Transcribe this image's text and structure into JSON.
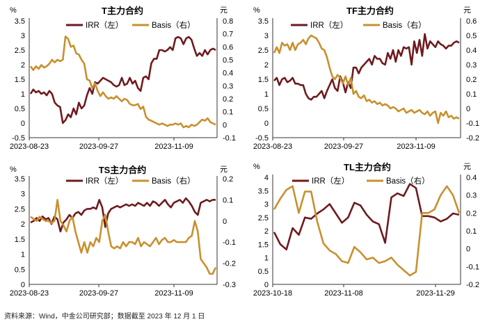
{
  "source_note": "资料来源：Wind，中金公司研究部；数据截至 2023 年 12 月 1 日",
  "colors": {
    "irr": "#6e1a1e",
    "basis": "#c8902e",
    "axis": "#333333",
    "text": "#000000"
  },
  "chart_data": [
    {
      "type": "line",
      "title": "T主力合约",
      "left_unit": "%",
      "right_unit": "元",
      "left_ticks": [
        "3.5",
        "3",
        "2.5",
        "2",
        "1.5",
        "1",
        "0.5",
        "0",
        "-0.5"
      ],
      "right_ticks": [
        "0.8",
        "0.7",
        "0.6",
        "0.5",
        "0.4",
        "0.3",
        "0.2",
        "0.1",
        "0",
        "-0.1"
      ],
      "x_ticks": [
        "2023-08-23",
        "2023-09-27",
        "2023-11-09"
      ],
      "ylim_left": [
        -0.5,
        3.5
      ],
      "ylim_right": [
        -0.1,
        0.8
      ],
      "series": [
        {
          "name": "IRR（左）",
          "axis": "left",
          "values": [
            1.0,
            1.15,
            1.05,
            1.1,
            1.0,
            1.05,
            0.95,
            1.1,
            1.0,
            0.7,
            0.6,
            0.55,
            0.0,
            0.1,
            0.3,
            0.2,
            0.5,
            0.3,
            0.7,
            0.5,
            0.6,
            0.95,
            1.2,
            1.0,
            1.4,
            1.35,
            1.45,
            1.55,
            1.5,
            1.45,
            1.4,
            1.3,
            1.25,
            1.3,
            1.55,
            1.3,
            1.35,
            1.55,
            1.35,
            1.45,
            1.2,
            1.1,
            1.55,
            1.6,
            1.5,
            2.05,
            2.2,
            2.2,
            2.5,
            2.5,
            2.45,
            2.5,
            2.6,
            2.5,
            2.9,
            2.95,
            2.9,
            2.7,
            2.9,
            2.95,
            2.85,
            2.55,
            2.3,
            2.4,
            2.3,
            2.5,
            2.35,
            2.5,
            2.55,
            2.5
          ]
        },
        {
          "name": "Basis（右）",
          "axis": "right",
          "values": [
            0.45,
            0.42,
            0.45,
            0.43,
            0.46,
            0.44,
            0.45,
            0.47,
            0.5,
            0.48,
            0.5,
            0.49,
            0.5,
            0.68,
            0.66,
            0.6,
            0.61,
            0.55,
            0.54,
            0.5,
            0.47,
            0.35,
            0.34,
            0.28,
            0.32,
            0.26,
            0.22,
            0.25,
            0.22,
            0.2,
            0.21,
            0.2,
            0.22,
            0.2,
            0.18,
            0.2,
            0.19,
            0.16,
            0.15,
            0.15,
            0.16,
            0.12,
            0.14,
            0.06,
            0.04,
            0.03,
            0.02,
            0.01,
            0.0,
            0.01,
            0.0,
            -0.01,
            0.0,
            0.0,
            0.01,
            0.0,
            0.01,
            -0.02,
            -0.01,
            -0.02,
            0.0,
            -0.01,
            0.0,
            0.02,
            0.04,
            0.03,
            0.05,
            0.02,
            0.01,
            0.0
          ]
        }
      ]
    },
    {
      "type": "line",
      "title": "TF主力合约",
      "left_unit": "%",
      "right_unit": "元",
      "left_ticks": [
        "3.5",
        "3",
        "2.5",
        "2",
        "1.5",
        "1",
        "0.5",
        "0",
        "-0.5"
      ],
      "right_ticks": [
        "0.6",
        "0.5",
        "0.4",
        "0.3",
        "0.2",
        "0.1",
        "0",
        "-0.1",
        "-0.2"
      ],
      "x_ticks": [
        "2023-08-23",
        "2023-09-27",
        "2023-11-09"
      ],
      "ylim_left": [
        -0.5,
        3.5
      ],
      "ylim_right": [
        -0.2,
        0.6
      ],
      "series": [
        {
          "name": "IRR（左）",
          "axis": "left",
          "values": [
            1.45,
            1.55,
            1.3,
            1.5,
            1.55,
            1.4,
            1.45,
            1.55,
            1.35,
            1.35,
            1.3,
            1.3,
            1.0,
            0.85,
            0.8,
            0.9,
            0.9,
            1.0,
            1.1,
            0.85,
            1.1,
            1.3,
            1.5,
            1.2,
            1.1,
            1.6,
            1.4,
            1.05,
            1.4,
            1.2,
            1.9,
            1.9,
            1.7,
            1.9,
            2.0,
            2.1,
            2.2,
            2.0,
            2.3,
            2.2,
            2.2,
            2.05,
            2.0,
            2.4,
            2.2,
            2.5,
            2.1,
            2.5,
            2.3,
            2.6,
            2.55,
            2.6,
            2.0,
            2.8,
            2.4,
            2.85,
            2.3,
            3.05,
            2.55,
            2.8,
            2.7,
            2.6,
            2.8,
            2.7,
            2.65,
            2.55,
            2.65,
            2.65,
            2.75,
            2.8,
            2.75
          ]
        },
        {
          "name": "Basis（右）",
          "axis": "right",
          "values": [
            0.38,
            0.42,
            0.38,
            0.45,
            0.43,
            0.44,
            0.4,
            0.45,
            0.4,
            0.44,
            0.45,
            0.47,
            0.44,
            0.48,
            0.5,
            0.49,
            0.48,
            0.45,
            0.41,
            0.4,
            0.35,
            0.28,
            0.22,
            0.2,
            0.23,
            0.21,
            0.17,
            0.22,
            0.16,
            0.21,
            0.1,
            0.12,
            0.08,
            0.07,
            0.09,
            0.05,
            0.06,
            0.04,
            0.05,
            0.03,
            0.04,
            0.02,
            0.03,
            0.02,
            0.0,
            0.01,
            0.0,
            -0.02,
            -0.01,
            0.0,
            -0.03,
            -0.02,
            -0.01,
            -0.03,
            -0.02,
            -0.01,
            -0.03,
            -0.04,
            -0.02,
            -0.05,
            -0.03,
            -0.02,
            -0.1,
            -0.03,
            -0.05,
            -0.02,
            -0.06,
            -0.05,
            -0.07,
            -0.06,
            -0.07
          ]
        }
      ]
    },
    {
      "type": "line",
      "title": "TS主力合约",
      "left_unit": "%",
      "right_unit": "元",
      "left_ticks": [
        "3.5",
        "3",
        "2.5",
        "2",
        "1.5",
        "1",
        "0.5",
        "0"
      ],
      "right_ticks": [
        "0.2",
        "0.1",
        "0",
        "-0.1",
        "-0.2",
        "-0.3"
      ],
      "x_ticks": [
        "2023-08-23",
        "2023-09-27",
        "2023-11-09"
      ],
      "ylim_left": [
        0,
        3.5
      ],
      "ylim_right": [
        -0.3,
        0.2
      ],
      "series": [
        {
          "name": "IRR（左）",
          "axis": "left",
          "values": [
            2.05,
            2.1,
            2.2,
            2.1,
            2.25,
            2.15,
            2.2,
            2.0,
            2.25,
            2.15,
            1.75,
            2.05,
            2.15,
            2.3,
            2.2,
            2.35,
            2.4,
            2.3,
            2.45,
            2.5,
            2.5,
            2.55,
            2.5,
            2.8,
            2.55,
            1.9,
            2.35,
            2.5,
            2.55,
            2.6,
            2.55,
            2.6,
            2.65,
            2.6,
            2.65,
            2.6,
            2.7,
            2.65,
            2.6,
            2.7,
            2.6,
            2.75,
            2.7,
            2.6,
            2.7,
            2.8,
            2.65,
            2.55,
            2.7,
            2.75,
            2.8,
            2.7,
            2.85,
            2.75,
            2.6,
            2.4,
            2.3,
            2.7,
            2.75,
            2.8,
            2.75,
            2.8,
            2.8
          ]
        },
        {
          "name": "Basis（右）",
          "axis": "right",
          "values": [
            0.02,
            0.01,
            0.0,
            0.02,
            0.01,
            0.0,
            0.0,
            -0.01,
            0.0,
            0.1,
            0.0,
            -0.02,
            -0.05,
            0.0,
            0.02,
            -0.05,
            -0.1,
            -0.15,
            -0.1,
            -0.15,
            -0.1,
            -0.12,
            -0.08,
            -0.1,
            0.0,
            0.03,
            -0.05,
            -0.12,
            -0.13,
            -0.12,
            -0.13,
            -0.1,
            -0.12,
            -0.1,
            -0.1,
            -0.11,
            -0.08,
            -0.12,
            -0.1,
            -0.11,
            -0.12,
            -0.1,
            -0.08,
            -0.11,
            -0.09,
            -0.08,
            -0.1,
            -0.1,
            -0.09,
            -0.1,
            -0.1,
            -0.1,
            -0.1,
            -0.08,
            -0.07,
            0.0,
            -0.05,
            -0.18,
            -0.2,
            -0.22,
            -0.25,
            -0.25,
            -0.22
          ]
        }
      ]
    },
    {
      "type": "line",
      "title": "TL主力合约",
      "left_unit": "%",
      "right_unit": "元",
      "left_ticks": [
        "4",
        "3.5",
        "3",
        "2.5",
        "2",
        "1.5",
        "1",
        "0.5",
        "0"
      ],
      "right_ticks": [
        "0.4",
        "0.3",
        "0.2",
        "0.1",
        "0",
        "-0.1",
        "-0.2"
      ],
      "x_ticks": [
        "2023-10-18",
        "2023-11-08",
        "2023-11-29"
      ],
      "ylim_left": [
        0,
        4
      ],
      "ylim_right": [
        -0.2,
        0.4
      ],
      "series": [
        {
          "name": "IRR（左）",
          "axis": "left",
          "values": [
            1.95,
            1.5,
            1.3,
            2.1,
            1.85,
            2.5,
            2.45,
            2.65,
            2.8,
            3.0,
            2.65,
            2.3,
            2.5,
            3.05,
            2.95,
            2.6,
            2.35,
            2.25,
            1.55,
            3.25,
            3.4,
            3.3,
            3.75,
            3.6,
            2.55,
            2.55,
            2.5,
            2.35,
            2.45,
            2.65,
            2.6
          ]
        },
        {
          "name": "Basis（右）",
          "axis": "right",
          "values": [
            0.22,
            0.28,
            0.33,
            0.35,
            0.2,
            0.32,
            0.32,
            0.15,
            0.03,
            -0.01,
            -0.03,
            -0.07,
            -0.08,
            0.01,
            -0.02,
            -0.06,
            -0.05,
            -0.08,
            -0.07,
            -0.05,
            -0.09,
            -0.12,
            -0.15,
            -0.13,
            0.2,
            0.2,
            0.22,
            0.3,
            0.35,
            0.3,
            0.2
          ]
        }
      ]
    }
  ]
}
